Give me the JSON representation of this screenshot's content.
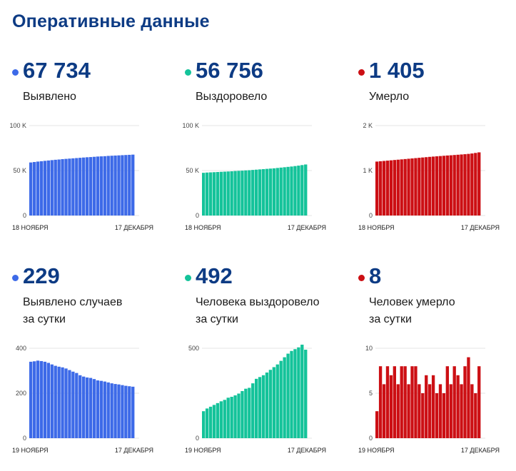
{
  "title": "Оперативные данные",
  "panels": [
    {
      "value": "67 734",
      "label_lines": [
        "Выявлено"
      ],
      "color": "#3d6ae8",
      "chart_data": {
        "type": "bar",
        "x_start_label": "18 НОЯБРЯ",
        "x_end_label": "17 ДЕКАБРЯ",
        "ylim": [
          0,
          100000
        ],
        "yticks": [
          {
            "value": 0,
            "label": "0"
          },
          {
            "value": 50000,
            "label": "50 K"
          },
          {
            "value": 100000,
            "label": "100 K"
          }
        ],
        "values": [
          59000,
          59500,
          60000,
          60400,
          60800,
          61200,
          61600,
          62000,
          62300,
          62700,
          63000,
          63300,
          63600,
          63900,
          64200,
          64500,
          64800,
          65000,
          65300,
          65600,
          65800,
          66000,
          66300,
          66500,
          66700,
          66900,
          67100,
          67300,
          67500,
          67734
        ]
      }
    },
    {
      "value": "56 756",
      "label_lines": [
        "Выздоровело"
      ],
      "color": "#14c39a",
      "chart_data": {
        "type": "bar",
        "x_start_label": "18 НОЯБРЯ",
        "x_end_label": "17 ДЕКАБРЯ",
        "ylim": [
          0,
          100000
        ],
        "yticks": [
          {
            "value": 0,
            "label": "0"
          },
          {
            "value": 50000,
            "label": "50 K"
          },
          {
            "value": 100000,
            "label": "100 K"
          }
        ],
        "values": [
          47500,
          47800,
          48000,
          48200,
          48400,
          48600,
          48800,
          49000,
          49200,
          49500,
          49700,
          49900,
          50200,
          50400,
          50700,
          51000,
          51300,
          51600,
          51900,
          52200,
          52500,
          52900,
          53300,
          53700,
          54100,
          54500,
          55000,
          55500,
          56100,
          56756
        ]
      }
    },
    {
      "value": "1 405",
      "label_lines": [
        "Умерло"
      ],
      "color": "#cc0f14",
      "chart_data": {
        "type": "bar",
        "x_start_label": "18 НОЯБРЯ",
        "x_end_label": "17 ДЕКАБРЯ",
        "ylim": [
          0,
          2000
        ],
        "yticks": [
          {
            "value": 0,
            "label": "0"
          },
          {
            "value": 1000,
            "label": "1 K"
          },
          {
            "value": 2000,
            "label": "2 K"
          }
        ],
        "values": [
          1200,
          1207,
          1214,
          1221,
          1228,
          1235,
          1242,
          1249,
          1256,
          1263,
          1270,
          1277,
          1284,
          1291,
          1298,
          1305,
          1311,
          1317,
          1323,
          1329,
          1335,
          1340,
          1346,
          1352,
          1358,
          1364,
          1371,
          1380,
          1392,
          1405
        ]
      }
    },
    {
      "value": "229",
      "label_lines": [
        "Выявлено случаев",
        "за сутки"
      ],
      "color": "#3d6ae8",
      "chart_data": {
        "type": "bar",
        "x_start_label": "19 НОЯБРЯ",
        "x_end_label": "17 ДЕКАБРЯ",
        "ylim": [
          0,
          400
        ],
        "yticks": [
          {
            "value": 0,
            "label": "0"
          },
          {
            "value": 200,
            "label": "200"
          },
          {
            "value": 400,
            "label": "400"
          }
        ],
        "values": [
          340,
          342,
          345,
          343,
          340,
          335,
          328,
          322,
          318,
          315,
          310,
          303,
          296,
          290,
          280,
          274,
          270,
          268,
          263,
          257,
          255,
          252,
          248,
          244,
          241,
          239,
          236,
          233,
          231,
          229
        ]
      }
    },
    {
      "value": "492",
      "label_lines": [
        "Человека выздоровело",
        "за сутки"
      ],
      "color": "#14c39a",
      "chart_data": {
        "type": "bar",
        "x_start_label": "19 НОЯБРЯ",
        "x_end_label": "17 ДЕКАБРЯ",
        "ylim": [
          0,
          500
        ],
        "yticks": [
          {
            "value": 0,
            "label": "0"
          },
          {
            "value": 500,
            "label": "500"
          }
        ],
        "values": [
          150,
          165,
          175,
          185,
          195,
          205,
          213,
          225,
          230,
          238,
          248,
          262,
          275,
          280,
          305,
          330,
          340,
          350,
          365,
          380,
          395,
          410,
          430,
          450,
          470,
          485,
          495,
          505,
          520,
          492
        ]
      }
    },
    {
      "value": "8",
      "label_lines": [
        "Человек умерло",
        "за сутки"
      ],
      "color": "#cc0f14",
      "chart_data": {
        "type": "bar",
        "x_start_label": "19 НОЯБРЯ",
        "x_end_label": "17 ДЕКАБРЯ",
        "ylim": [
          0,
          10
        ],
        "yticks": [
          {
            "value": 0,
            "label": "0"
          },
          {
            "value": 5,
            "label": "5"
          },
          {
            "value": 10,
            "label": "10"
          }
        ],
        "values": [
          3,
          8,
          6,
          8,
          7,
          8,
          6,
          8,
          8,
          6,
          8,
          8,
          6,
          5,
          7,
          6,
          7,
          5,
          6,
          5,
          8,
          6,
          8,
          7,
          6,
          8,
          9,
          6,
          5,
          8
        ]
      }
    }
  ]
}
